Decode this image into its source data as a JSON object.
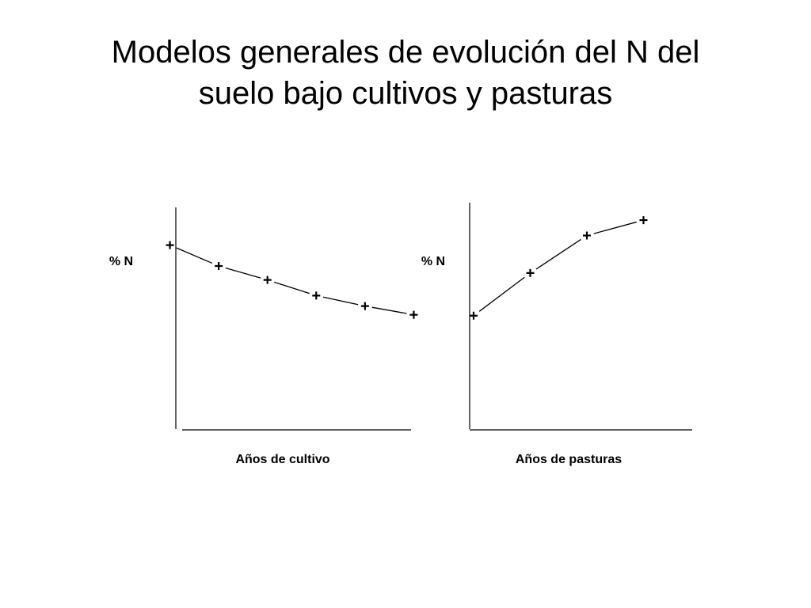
{
  "title": {
    "line1": "Modelos generales de evolución del N del",
    "line2": "suelo bajo cultivos y pasturas"
  },
  "chart_data": [
    {
      "type": "line",
      "ylabel": "% N",
      "xlabel": "Años de cultivo",
      "grid": false,
      "ticks": false,
      "marker": "+",
      "trend": "decreasing",
      "x": [
        1,
        2,
        3,
        4,
        5,
        6
      ],
      "values": [
        4.1,
        3.5,
        3.1,
        2.65,
        2.35,
        2.1
      ],
      "xlim": [
        0,
        7
      ],
      "ylim": [
        0,
        5
      ]
    },
    {
      "type": "line",
      "ylabel": "% N",
      "xlabel": "Años de pasturas",
      "grid": false,
      "ticks": false,
      "marker": "+",
      "trend": "increasing",
      "x": [
        0,
        1,
        2,
        3
      ],
      "values": [
        2.35,
        3.6,
        4.7,
        5.15
      ],
      "xlim": [
        0,
        4
      ],
      "ylim": [
        0,
        5.5
      ]
    }
  ]
}
